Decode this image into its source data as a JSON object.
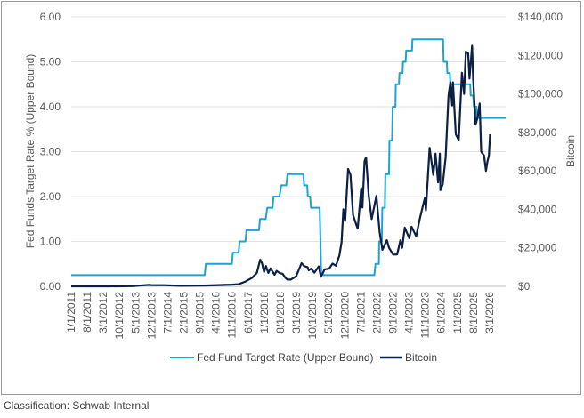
{
  "footer": "Classification: Schwab Internal",
  "chart_data": {
    "type": "line",
    "title": "",
    "ylabel_left": "Fed Funds Target Rate % (Upper Bound)",
    "ylabel_right": "Bitcoin",
    "left_axis": {
      "min": 0,
      "max": 6,
      "ticks": [
        "0.00",
        "1.00",
        "2.00",
        "3.00",
        "4.00",
        "5.00",
        "6.00"
      ]
    },
    "right_axis": {
      "min": 0,
      "max": 140000,
      "ticks": [
        "$0",
        "$20,000",
        "$40,000",
        "$60,000",
        "$80,000",
        "$100,000",
        "$120,000",
        "$140,000"
      ]
    },
    "x_range": [
      "2011-01-01",
      "2026-12-31"
    ],
    "x_tick_labels": [
      "1/1/2011",
      "8/1/2011",
      "3/1/2012",
      "10/1/2012",
      "5/1/2013",
      "12/1/2013",
      "7/1/2014",
      "2/1/2015",
      "9/1/2015",
      "4/1/2016",
      "11/1/2016",
      "6/1/2017",
      "1/1/2018",
      "8/1/2018",
      "3/1/2019",
      "10/1/2019",
      "5/1/2020",
      "12/1/2020",
      "7/1/2021",
      "2/1/2022",
      "9/1/2022",
      "4/1/2023",
      "11/1/2023",
      "6/1/2024",
      "1/1/2025",
      "8/1/2025",
      "3/1/2026"
    ],
    "legend_position": "bottom",
    "grid": "horizontal",
    "series": [
      {
        "name": "Fed Fund Target Rate (Upper Bound)",
        "axis": "left",
        "color": "#1ba3d4",
        "points": [
          [
            "2011-01-01",
            0.25
          ],
          [
            "2015-12-01",
            0.25
          ],
          [
            "2015-12-16",
            0.5
          ],
          [
            "2016-12-01",
            0.5
          ],
          [
            "2016-12-14",
            0.75
          ],
          [
            "2017-03-01",
            0.75
          ],
          [
            "2017-03-15",
            1.0
          ],
          [
            "2017-06-01",
            1.0
          ],
          [
            "2017-06-14",
            1.25
          ],
          [
            "2017-12-01",
            1.25
          ],
          [
            "2017-12-13",
            1.5
          ],
          [
            "2018-03-01",
            1.5
          ],
          [
            "2018-03-21",
            1.75
          ],
          [
            "2018-06-01",
            1.75
          ],
          [
            "2018-06-13",
            2.0
          ],
          [
            "2018-09-01",
            2.0
          ],
          [
            "2018-09-26",
            2.25
          ],
          [
            "2018-12-01",
            2.25
          ],
          [
            "2018-12-19",
            2.5
          ],
          [
            "2019-07-20",
            2.5
          ],
          [
            "2019-07-31",
            2.25
          ],
          [
            "2019-09-10",
            2.25
          ],
          [
            "2019-09-18",
            2.0
          ],
          [
            "2019-10-20",
            2.0
          ],
          [
            "2019-10-30",
            1.75
          ],
          [
            "2020-02-25",
            1.75
          ],
          [
            "2020-03-03",
            1.25
          ],
          [
            "2020-03-16",
            0.25
          ],
          [
            "2022-03-01",
            0.25
          ],
          [
            "2022-03-16",
            0.5
          ],
          [
            "2022-05-01",
            0.5
          ],
          [
            "2022-05-04",
            1.0
          ],
          [
            "2022-06-10",
            1.0
          ],
          [
            "2022-06-15",
            1.75
          ],
          [
            "2022-07-20",
            1.75
          ],
          [
            "2022-07-27",
            2.5
          ],
          [
            "2022-09-15",
            2.5
          ],
          [
            "2022-09-21",
            3.25
          ],
          [
            "2022-10-25",
            3.25
          ],
          [
            "2022-11-02",
            4.0
          ],
          [
            "2022-12-10",
            4.0
          ],
          [
            "2022-12-14",
            4.5
          ],
          [
            "2023-01-25",
            4.5
          ],
          [
            "2023-02-01",
            4.75
          ],
          [
            "2023-03-15",
            4.75
          ],
          [
            "2023-03-22",
            5.0
          ],
          [
            "2023-04-25",
            5.0
          ],
          [
            "2023-05-03",
            5.25
          ],
          [
            "2023-07-20",
            5.25
          ],
          [
            "2023-07-26",
            5.5
          ],
          [
            "2024-09-10",
            5.5
          ],
          [
            "2024-09-18",
            5.0
          ],
          [
            "2024-10-30",
            5.0
          ],
          [
            "2024-11-07",
            4.75
          ],
          [
            "2024-12-10",
            4.75
          ],
          [
            "2024-12-18",
            4.5
          ],
          [
            "2025-09-10",
            4.5
          ],
          [
            "2025-09-17",
            4.25
          ],
          [
            "2025-10-20",
            4.25
          ],
          [
            "2025-10-29",
            4.0
          ],
          [
            "2025-12-05",
            4.0
          ],
          [
            "2025-12-10",
            3.75
          ],
          [
            "2026-12-31",
            3.75
          ]
        ]
      },
      {
        "name": "Bitcoin",
        "axis": "right",
        "color": "#0c1f44",
        "points": [
          [
            "2011-01-01",
            0
          ],
          [
            "2011-06-01",
            20
          ],
          [
            "2012-06-01",
            8
          ],
          [
            "2013-04-01",
            100
          ],
          [
            "2013-11-15",
            800
          ],
          [
            "2013-12-15",
            600
          ],
          [
            "2014-06-01",
            600
          ],
          [
            "2015-01-01",
            300
          ],
          [
            "2015-12-01",
            400
          ],
          [
            "2016-06-01",
            650
          ],
          [
            "2016-12-01",
            900
          ],
          [
            "2017-03-01",
            1100
          ],
          [
            "2017-06-01",
            2500
          ],
          [
            "2017-09-01",
            4500
          ],
          [
            "2017-11-01",
            7000
          ],
          [
            "2017-12-17",
            13800
          ],
          [
            "2018-01-10",
            12000
          ],
          [
            "2018-02-06",
            7500
          ],
          [
            "2018-03-05",
            10500
          ],
          [
            "2018-04-05",
            7000
          ],
          [
            "2018-05-05",
            9300
          ],
          [
            "2018-06-28",
            6000
          ],
          [
            "2018-07-25",
            8000
          ],
          [
            "2018-09-01",
            7000
          ],
          [
            "2018-10-15",
            6500
          ],
          [
            "2018-11-20",
            4500
          ],
          [
            "2018-12-15",
            3500
          ],
          [
            "2019-02-01",
            3500
          ],
          [
            "2019-04-15",
            5200
          ],
          [
            "2019-06-26",
            12000
          ],
          [
            "2019-08-01",
            10500
          ],
          [
            "2019-09-15",
            10000
          ],
          [
            "2019-10-01",
            8300
          ],
          [
            "2019-11-01",
            9200
          ],
          [
            "2019-12-15",
            7100
          ],
          [
            "2020-02-12",
            10300
          ],
          [
            "2020-03-13",
            5000
          ],
          [
            "2020-05-01",
            8800
          ],
          [
            "2020-07-01",
            9200
          ],
          [
            "2020-08-15",
            11800
          ],
          [
            "2020-10-01",
            10700
          ],
          [
            "2020-11-15",
            16000
          ],
          [
            "2020-12-15",
            23000
          ],
          [
            "2021-01-08",
            40000
          ],
          [
            "2021-02-01",
            34000
          ],
          [
            "2021-03-13",
            61000
          ],
          [
            "2021-04-14",
            58000
          ],
          [
            "2021-05-19",
            37000
          ],
          [
            "2021-06-22",
            33000
          ],
          [
            "2021-07-20",
            30000
          ],
          [
            "2021-09-06",
            51000
          ],
          [
            "2021-09-21",
            41000
          ],
          [
            "2021-10-20",
            65000
          ],
          [
            "2021-11-10",
            67000
          ],
          [
            "2021-12-15",
            47000
          ],
          [
            "2022-01-24",
            35000
          ],
          [
            "2022-03-29",
            47000
          ],
          [
            "2022-05-12",
            28000
          ],
          [
            "2022-06-18",
            19000
          ],
          [
            "2022-08-15",
            24000
          ],
          [
            "2022-09-15",
            20000
          ],
          [
            "2022-11-09",
            16500
          ],
          [
            "2023-01-01",
            16600
          ],
          [
            "2023-02-15",
            24000
          ],
          [
            "2023-03-10",
            20000
          ],
          [
            "2023-04-14",
            30500
          ],
          [
            "2023-06-15",
            25000
          ],
          [
            "2023-07-15",
            31000
          ],
          [
            "2023-09-15",
            26000
          ],
          [
            "2023-11-01",
            35000
          ],
          [
            "2023-12-15",
            42000
          ],
          [
            "2024-01-10",
            46000
          ],
          [
            "2024-01-23",
            39500
          ],
          [
            "2024-03-14",
            72000
          ],
          [
            "2024-05-01",
            58000
          ],
          [
            "2024-06-01",
            69000
          ],
          [
            "2024-07-05",
            54000
          ],
          [
            "2024-07-29",
            69000
          ],
          [
            "2024-08-05",
            50000
          ],
          [
            "2024-09-06",
            53000
          ],
          [
            "2024-10-15",
            67000
          ],
          [
            "2024-11-22",
            99000
          ],
          [
            "2024-12-17",
            106000
          ],
          [
            "2025-01-10",
            94000
          ],
          [
            "2025-01-21",
            106000
          ],
          [
            "2025-02-28",
            79000
          ],
          [
            "2025-04-09",
            76000
          ],
          [
            "2025-05-22",
            111000
          ],
          [
            "2025-06-20",
            100000
          ],
          [
            "2025-07-14",
            122000
          ],
          [
            "2025-08-14",
            121000
          ],
          [
            "2025-09-01",
            108000
          ],
          [
            "2025-10-06",
            125000
          ],
          [
            "2025-10-20",
            108000
          ],
          [
            "2025-11-21",
            84000
          ],
          [
            "2025-12-20",
            88000
          ],
          [
            "2026-01-15",
            95000
          ],
          [
            "2026-02-05",
            70000
          ],
          [
            "2026-03-15",
            68000
          ],
          [
            "2026-04-10",
            60000
          ],
          [
            "2026-05-01",
            65000
          ],
          [
            "2026-05-20",
            68000
          ],
          [
            "2026-06-05",
            79000
          ]
        ]
      }
    ]
  }
}
